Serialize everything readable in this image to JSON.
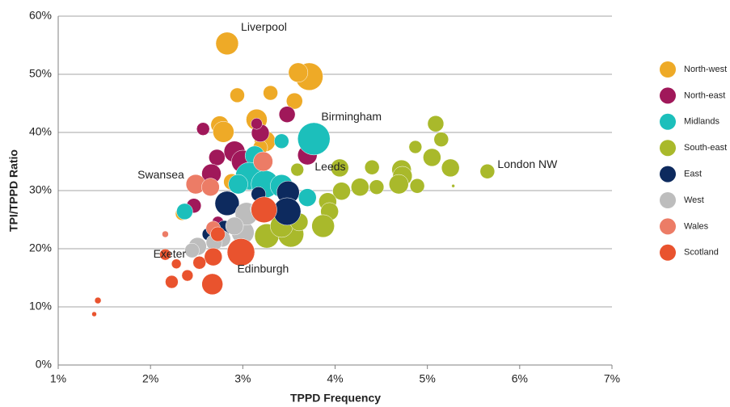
{
  "chart_data": {
    "type": "bubble",
    "x_label": "TPPD Frequency",
    "y_label": "TPI/TPPD Ratio",
    "xlim": [
      1,
      7
    ],
    "ylim": [
      0,
      60
    ],
    "xticks": [
      {
        "value": 1,
        "label": "1%"
      },
      {
        "value": 2,
        "label": "2%"
      },
      {
        "value": 3,
        "label": "3%"
      },
      {
        "value": 4,
        "label": "4%"
      },
      {
        "value": 5,
        "label": "5%"
      },
      {
        "value": 6,
        "label": "6%"
      },
      {
        "value": 7,
        "label": "7%"
      }
    ],
    "yticks": [
      {
        "value": 0,
        "label": "0%"
      },
      {
        "value": 10,
        "label": "10%"
      },
      {
        "value": 20,
        "label": "20%"
      },
      {
        "value": 30,
        "label": "30%"
      },
      {
        "value": 40,
        "label": "40%"
      },
      {
        "value": 50,
        "label": "50%"
      },
      {
        "value": 60,
        "label": "60%"
      }
    ],
    "grid": true,
    "legend": "right",
    "series": [
      {
        "name": "North-west",
        "color": "#eeaa27",
        "x": [
          2.83,
          3.72,
          3.6,
          3.3,
          3.56,
          2.94,
          3.15,
          2.75,
          2.79,
          3.24,
          2.88,
          2.34,
          3.19
        ],
        "values": [
          55.3,
          49.6,
          50.3,
          46.8,
          45.4,
          46.4,
          42.2,
          41.3,
          40.1,
          38.5,
          31.5,
          26.0,
          37.4
        ],
        "sizes": [
          14,
          17,
          12,
          9,
          10,
          9,
          13,
          11,
          13,
          13,
          10,
          8,
          9
        ]
      },
      {
        "name": "North-east",
        "color": "#a0185a",
        "x": [
          3.48,
          2.57,
          3.19,
          3.15,
          3.7,
          2.91,
          2.72,
          3.0,
          2.66,
          3.17,
          2.47,
          2.73
        ],
        "values": [
          43.1,
          40.6,
          39.9,
          41.5,
          36.1,
          36.7,
          35.7,
          35.0,
          32.9,
          35.0,
          27.4,
          24.6
        ],
        "sizes": [
          10,
          8,
          11,
          7,
          12,
          13,
          10,
          14,
          12,
          12,
          9,
          7
        ]
      },
      {
        "name": "Midlands",
        "color": "#1cbfbb",
        "x": [
          3.77,
          3.42,
          3.13,
          3.07,
          3.24,
          3.42,
          3.7,
          2.37,
          2.95
        ],
        "values": [
          38.9,
          38.5,
          36.0,
          32.5,
          31.1,
          30.8,
          28.8,
          26.4,
          31.1
        ],
        "sizes": [
          20,
          9,
          12,
          17,
          17,
          14,
          11,
          10,
          12
        ]
      },
      {
        "name": "South-east",
        "color": "#a9b92b",
        "x": [
          5.65,
          5.09,
          5.15,
          4.87,
          5.05,
          5.25,
          4.72,
          4.4,
          4.73,
          4.69,
          4.89,
          4.45,
          4.27,
          4.07,
          4.05,
          3.92,
          3.94,
          3.87,
          3.59,
          3.52,
          3.26,
          3.42,
          3.61,
          5.28
        ],
        "values": [
          33.3,
          41.5,
          38.8,
          37.5,
          35.7,
          33.9,
          33.6,
          34.0,
          32.5,
          31.1,
          30.8,
          30.6,
          30.6,
          29.9,
          33.9,
          28.1,
          26.4,
          23.9,
          33.6,
          22.5,
          22.2,
          23.9,
          24.6,
          30.8
        ],
        "sizes": [
          9,
          10,
          9,
          8,
          11,
          11,
          12,
          9,
          12,
          12,
          9,
          9,
          11,
          11,
          11,
          11,
          11,
          14,
          8,
          16,
          15,
          14,
          11,
          2
        ]
      },
      {
        "name": "East",
        "color": "#0d2a5e",
        "x": [
          2.83,
          3.49,
          3.48,
          2.8,
          3.08,
          2.63,
          3.17
        ],
        "values": [
          27.8,
          29.7,
          26.4,
          23.6,
          26.0,
          22.5,
          29.4
        ],
        "sizes": [
          15,
          14,
          17,
          9,
          8,
          8,
          9
        ]
      },
      {
        "name": "West",
        "color": "#bdbdbd",
        "x": [
          2.51,
          2.78,
          3.0,
          3.04,
          2.91,
          2.69,
          3.17,
          2.45
        ],
        "values": [
          20.4,
          21.7,
          22.8,
          26.0,
          23.9,
          21.1,
          26.9,
          19.7
        ],
        "sizes": [
          11,
          10,
          14,
          14,
          11,
          10,
          10,
          9
        ]
      },
      {
        "name": "Wales",
        "color": "#ec7c66",
        "x": [
          2.49,
          2.65,
          2.16,
          3.22,
          2.68
        ],
        "values": [
          31.1,
          30.6,
          22.5,
          35.0,
          23.5
        ],
        "sizes": [
          12,
          11,
          4,
          12,
          9
        ]
      },
      {
        "name": "Scotland",
        "color": "#e9532e",
        "x": [
          2.98,
          3.23,
          2.67,
          2.68,
          2.23,
          2.4,
          2.53,
          2.28,
          2.16,
          1.43,
          1.39,
          2.73
        ],
        "values": [
          19.4,
          26.7,
          13.9,
          18.6,
          14.3,
          15.4,
          17.6,
          17.4,
          19.0,
          11.1,
          8.75,
          22.5
        ],
        "sizes": [
          17,
          16,
          13,
          11,
          8,
          7,
          8,
          6,
          7,
          4,
          3,
          9
        ]
      }
    ],
    "annotations": [
      {
        "text": "Liverpool",
        "x": 2.98,
        "y": 58
      },
      {
        "text": "Birmingham",
        "x": 3.85,
        "y": 42.6
      },
      {
        "text": "Leeds",
        "x": 3.78,
        "y": 34.0
      },
      {
        "text": "Swansea",
        "x": 1.86,
        "y": 32.6
      },
      {
        "text": "London NW",
        "x": 5.76,
        "y": 34.4
      },
      {
        "text": "Exeter",
        "x": 2.03,
        "y": 19.0
      },
      {
        "text": "Edinburgh",
        "x": 2.94,
        "y": 16.4
      }
    ]
  }
}
